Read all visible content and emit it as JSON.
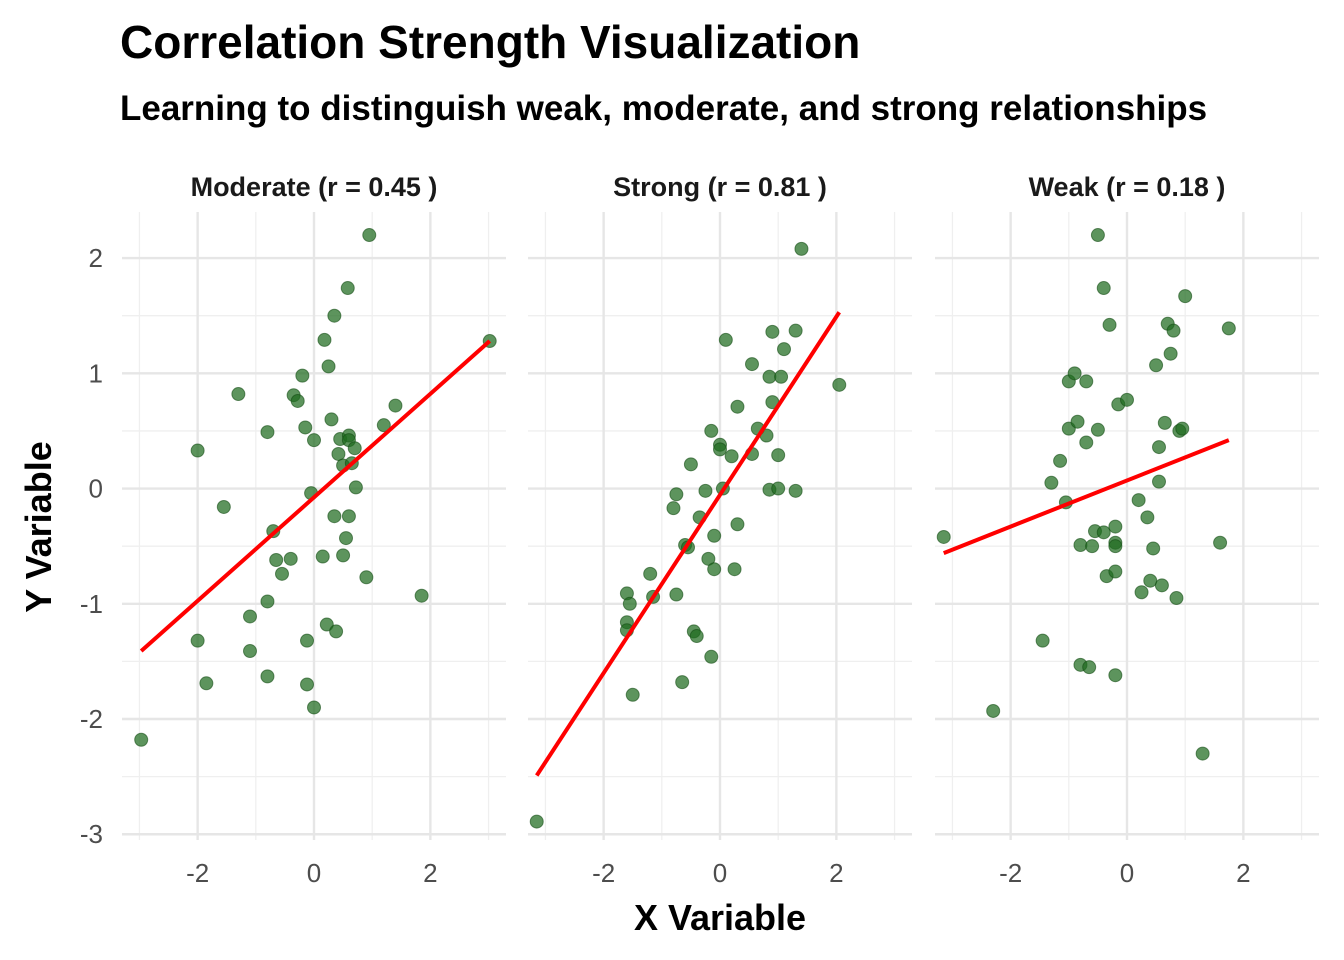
{
  "colors": {
    "point": "#1e6b1e",
    "fit": "#ff0000",
    "grid": "#e6e6e6"
  },
  "chart_data": {
    "type": "scatter",
    "title": "Correlation Strength Visualization",
    "subtitle": "Learning to distinguish weak, moderate, and strong relationships",
    "xlabel": "X Variable",
    "ylabel": "Y Variable",
    "xlim": [
      -3.3,
      3.3
    ],
    "ylim": [
      -3.05,
      2.4
    ],
    "x_ticks": [
      -2,
      0,
      2
    ],
    "y_ticks": [
      -3,
      -2,
      -1,
      0,
      1,
      2
    ],
    "grid": true,
    "panels": [
      {
        "label": "Moderate (r = 0.45 )",
        "fit": {
          "x": [
            -2.97,
            3.02
          ],
          "y": [
            -1.41,
            1.28
          ]
        },
        "points": [
          [
            -2.97,
            -2.18
          ],
          [
            -2.0,
            0.33
          ],
          [
            -2.0,
            -1.32
          ],
          [
            -1.85,
            -1.69
          ],
          [
            -1.55,
            -0.16
          ],
          [
            -1.3,
            0.82
          ],
          [
            -1.1,
            -1.11
          ],
          [
            -1.1,
            -1.41
          ],
          [
            -0.8,
            0.49
          ],
          [
            -0.8,
            -0.98
          ],
          [
            -0.8,
            -1.63
          ],
          [
            -0.7,
            -0.37
          ],
          [
            -0.65,
            -0.62
          ],
          [
            -0.55,
            -0.74
          ],
          [
            -0.4,
            -0.61
          ],
          [
            -0.35,
            0.81
          ],
          [
            -0.28,
            0.76
          ],
          [
            -0.2,
            0.98
          ],
          [
            -0.15,
            0.53
          ],
          [
            -0.12,
            -1.32
          ],
          [
            -0.12,
            -1.7
          ],
          [
            -0.05,
            -0.04
          ],
          [
            0.0,
            0.42
          ],
          [
            0.0,
            -1.9
          ],
          [
            0.15,
            -0.59
          ],
          [
            0.18,
            1.29
          ],
          [
            0.22,
            -1.18
          ],
          [
            0.25,
            1.06
          ],
          [
            0.3,
            0.6
          ],
          [
            0.35,
            1.5
          ],
          [
            0.35,
            -0.24
          ],
          [
            0.38,
            -1.24
          ],
          [
            0.42,
            0.3
          ],
          [
            0.45,
            0.43
          ],
          [
            0.5,
            0.2
          ],
          [
            0.5,
            -0.58
          ],
          [
            0.55,
            -0.43
          ],
          [
            0.58,
            1.74
          ],
          [
            0.6,
            0.46
          ],
          [
            0.6,
            0.42
          ],
          [
            0.6,
            -0.24
          ],
          [
            0.65,
            0.22
          ],
          [
            0.7,
            0.35
          ],
          [
            0.72,
            0.01
          ],
          [
            0.9,
            -0.77
          ],
          [
            0.95,
            2.2
          ],
          [
            1.2,
            0.55
          ],
          [
            1.4,
            0.72
          ],
          [
            1.85,
            -0.93
          ],
          [
            3.02,
            1.28
          ]
        ]
      },
      {
        "label": "Strong (r = 0.81 )",
        "fit": {
          "x": [
            -3.15,
            2.05
          ],
          "y": [
            -2.49,
            1.53
          ]
        },
        "points": [
          [
            -3.15,
            -2.89
          ],
          [
            -1.6,
            -0.91
          ],
          [
            -1.6,
            -1.16
          ],
          [
            -1.6,
            -1.23
          ],
          [
            -1.55,
            -1.0
          ],
          [
            -1.5,
            -1.79
          ],
          [
            -1.2,
            -0.74
          ],
          [
            -1.15,
            -0.94
          ],
          [
            -0.8,
            -0.17
          ],
          [
            -0.75,
            -0.05
          ],
          [
            -0.75,
            -0.92
          ],
          [
            -0.65,
            -1.68
          ],
          [
            -0.6,
            -0.49
          ],
          [
            -0.55,
            -0.51
          ],
          [
            -0.5,
            0.21
          ],
          [
            -0.45,
            -1.24
          ],
          [
            -0.4,
            -1.28
          ],
          [
            -0.35,
            -0.25
          ],
          [
            -0.25,
            -0.02
          ],
          [
            -0.2,
            -0.61
          ],
          [
            -0.15,
            -1.46
          ],
          [
            -0.15,
            0.5
          ],
          [
            -0.1,
            -0.41
          ],
          [
            -0.1,
            -0.7
          ],
          [
            0.0,
            0.38
          ],
          [
            0.0,
            0.34
          ],
          [
            0.05,
            0.0
          ],
          [
            0.1,
            1.29
          ],
          [
            0.2,
            0.28
          ],
          [
            0.25,
            -0.7
          ],
          [
            0.3,
            0.71
          ],
          [
            0.3,
            -0.31
          ],
          [
            0.55,
            1.08
          ],
          [
            0.55,
            0.3
          ],
          [
            0.65,
            0.52
          ],
          [
            0.8,
            0.46
          ],
          [
            0.85,
            0.97
          ],
          [
            0.85,
            -0.01
          ],
          [
            0.9,
            0.75
          ],
          [
            0.9,
            1.36
          ],
          [
            1.0,
            0.29
          ],
          [
            1.0,
            0.0
          ],
          [
            1.05,
            0.97
          ],
          [
            1.1,
            1.21
          ],
          [
            1.3,
            1.37
          ],
          [
            1.3,
            -0.02
          ],
          [
            1.4,
            2.08
          ],
          [
            2.05,
            0.9
          ]
        ]
      },
      {
        "label": "Weak (r = 0.18 )",
        "fit": {
          "x": [
            -3.15,
            1.75
          ],
          "y": [
            -0.56,
            0.42
          ]
        },
        "points": [
          [
            -3.15,
            -0.42
          ],
          [
            -2.3,
            -1.93
          ],
          [
            -1.45,
            -1.32
          ],
          [
            -1.3,
            0.05
          ],
          [
            -1.15,
            0.24
          ],
          [
            -1.05,
            -0.12
          ],
          [
            -1.0,
            0.93
          ],
          [
            -1.0,
            0.52
          ],
          [
            -0.9,
            1.0
          ],
          [
            -0.85,
            0.58
          ],
          [
            -0.8,
            -1.53
          ],
          [
            -0.8,
            -0.49
          ],
          [
            -0.7,
            0.4
          ],
          [
            -0.7,
            0.93
          ],
          [
            -0.65,
            -1.55
          ],
          [
            -0.6,
            -0.5
          ],
          [
            -0.55,
            -0.37
          ],
          [
            -0.5,
            0.51
          ],
          [
            -0.5,
            2.2
          ],
          [
            -0.4,
            1.74
          ],
          [
            -0.4,
            -0.38
          ],
          [
            -0.35,
            -0.76
          ],
          [
            -0.3,
            1.42
          ],
          [
            -0.2,
            -0.33
          ],
          [
            -0.2,
            -0.47
          ],
          [
            -0.2,
            -0.5
          ],
          [
            -0.2,
            -0.72
          ],
          [
            -0.2,
            -1.62
          ],
          [
            -0.15,
            0.73
          ],
          [
            0.0,
            0.77
          ],
          [
            0.2,
            -0.1
          ],
          [
            0.25,
            -0.9
          ],
          [
            0.35,
            -0.25
          ],
          [
            0.4,
            -0.8
          ],
          [
            0.45,
            -0.52
          ],
          [
            0.5,
            1.07
          ],
          [
            0.55,
            0.06
          ],
          [
            0.55,
            0.36
          ],
          [
            0.6,
            -0.84
          ],
          [
            0.65,
            0.57
          ],
          [
            0.7,
            1.43
          ],
          [
            0.75,
            1.17
          ],
          [
            0.8,
            1.37
          ],
          [
            0.85,
            -0.95
          ],
          [
            0.9,
            0.5
          ],
          [
            0.95,
            0.52
          ],
          [
            1.0,
            1.67
          ],
          [
            1.3,
            -2.3
          ],
          [
            1.6,
            -0.47
          ],
          [
            1.75,
            1.39
          ]
        ]
      }
    ]
  }
}
